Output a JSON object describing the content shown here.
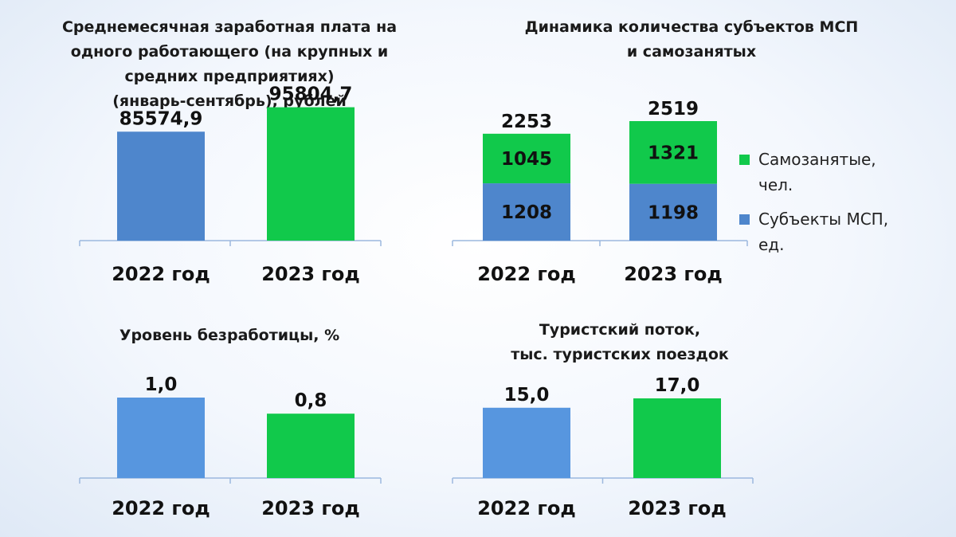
{
  "colors": {
    "blue": "#4e86cc",
    "blue_light": "#5796df",
    "green": "#11c94b"
  },
  "chart_data": [
    {
      "id": "salary",
      "type": "bar",
      "title_lines": [
        "Среднемесячная заработная плата на",
        "одного работающего (на крупных и",
        "средних предприятиях)",
        "(январь-сентябрь), рублей"
      ],
      "categories": [
        "2022 год",
        "2023 год"
      ],
      "values": [
        85574.9,
        95804.7
      ],
      "value_labels": [
        "85574,9",
        "95804,7"
      ],
      "ylim": [
        40000,
        100000
      ]
    },
    {
      "id": "msp",
      "type": "bar",
      "stacked": true,
      "title_lines": [
        "Динамика количества субъектов МСП",
        "и самозанятых"
      ],
      "categories": [
        "2022 год",
        "2023 год"
      ],
      "series": [
        {
          "name_lines": [
            "Субъекты МСП,",
            "ед."
          ],
          "values": [
            1208,
            1198
          ],
          "value_labels": [
            "1208",
            "1198"
          ]
        },
        {
          "name_lines": [
            "Самозанятые,",
            "чел."
          ],
          "values": [
            1045,
            1321
          ],
          "value_labels": [
            "1045",
            "1321"
          ]
        }
      ],
      "totals": [
        "2253",
        "2519"
      ],
      "legend_position": "right",
      "ylim": [
        0,
        2519
      ]
    },
    {
      "id": "unemployment",
      "type": "bar",
      "title_lines": [
        "Уровень безработицы, %"
      ],
      "categories": [
        "2022 год",
        "2023 год"
      ],
      "values": [
        1.0,
        0.8
      ],
      "value_labels": [
        "1,0",
        "0,8"
      ],
      "ylim": [
        0,
        1.0
      ]
    },
    {
      "id": "tourism",
      "type": "bar",
      "title_lines": [
        "Туристский поток,",
        "тыс. туристских поездок"
      ],
      "categories": [
        "2022 год",
        "2023 год"
      ],
      "values": [
        15.0,
        17.0
      ],
      "value_labels": [
        "15,0",
        "17,0"
      ],
      "ylim": [
        0,
        25.5
      ]
    }
  ]
}
